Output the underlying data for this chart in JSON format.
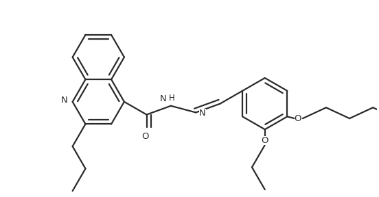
{
  "bg_color": "#ffffff",
  "line_color": "#2a2a2a",
  "lw": 1.6,
  "BL": 0.38,
  "figsize": [
    5.52,
    2.88
  ],
  "dpi": 100,
  "xlim": [
    0.0,
    5.52
  ],
  "ylim": [
    0.0,
    2.88
  ]
}
